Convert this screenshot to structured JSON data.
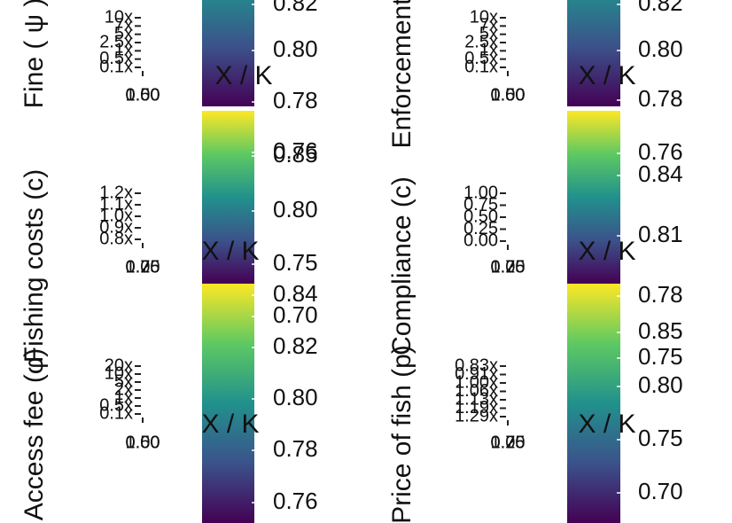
{
  "panels": [
    {
      "y_title": "Fine ( ψ )",
      "y_ticks": [
        "10x",
        "7x",
        "5x",
        "2.5x",
        "1x",
        "0.5x",
        "0.1x"
      ],
      "x_ticks": [
        "0.00",
        "0.50",
        "1.00"
      ],
      "legend_title": "X / K",
      "legend_labels": [
        "0.82",
        "0.80",
        "0.78",
        "0.76"
      ]
    },
    {
      "y_title": "Fishing costs (c)",
      "y_ticks": [
        "1.2x",
        "1.1x",
        "1.0x",
        "0.9x",
        "0.8x"
      ],
      "x_ticks": [
        "0.25",
        "0.75",
        "1.00"
      ],
      "legend_title": "X / K",
      "legend_labels": [
        "0.85",
        "0.80",
        "0.75",
        "0.70"
      ]
    },
    {
      "y_title": "Access fee (φ)",
      "y_ticks": [
        "20x",
        "10x",
        "5x",
        "2x",
        "1x",
        "0.5x",
        "0.1x"
      ],
      "x_ticks": [
        "0.00",
        "0.50",
        "1.00"
      ],
      "legend_title": "X / K",
      "legend_labels": [
        "0.84",
        "0.82",
        "0.80",
        "0.78",
        "0.76"
      ]
    },
    {
      "y_title": "Enforcement (e)",
      "y_ticks": [
        "10x",
        "7x",
        "5x",
        "2.5x",
        "1x",
        "0.5x",
        "0.1x"
      ],
      "x_ticks": [
        "0.00",
        "0.50",
        "1.00"
      ],
      "legend_title": "X / K",
      "legend_labels": [
        "0.82",
        "0.80",
        "0.78",
        "0.76"
      ]
    },
    {
      "y_title": "Compliance (c)",
      "y_ticks": [
        "1.00",
        "0.75",
        "0.50",
        "0.25",
        "0.00"
      ],
      "x_ticks": [
        "0.25",
        "0.75",
        "1.00"
      ],
      "legend_title": "X / K",
      "legend_labels": [
        "0.84",
        "0.81",
        "0.78"
      ]
    },
    {
      "y_title": "Price of fish (p)",
      "y_ticks": [
        "0.83x",
        "0.91x",
        "1.00x",
        "1.06x",
        "1.13x",
        "1.19x",
        "1.29x"
      ],
      "x_ticks": [
        "0.25",
        "0.75",
        "1.00"
      ],
      "legend_title": "X / K",
      "legend_labels": [
        "0.85",
        "0.75",
        "0.80",
        "0.75",
        "0.70"
      ]
    }
  ]
}
